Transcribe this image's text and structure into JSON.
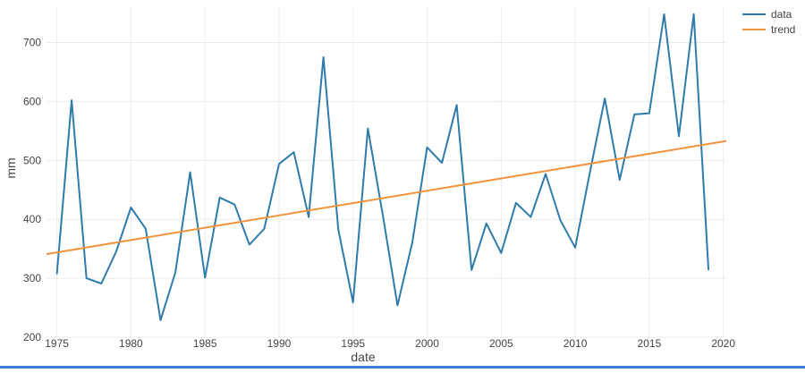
{
  "chart_data": {
    "type": "line",
    "title": "",
    "xlabel": "date",
    "ylabel": "mm",
    "xlim": [
      1974.3,
      2020.2
    ],
    "ylim": [
      200,
      760
    ],
    "x_ticks": [
      1975,
      1980,
      1985,
      1990,
      1995,
      2000,
      2005,
      2010,
      2015,
      2020
    ],
    "y_ticks": [
      200,
      300,
      400,
      500,
      600,
      700
    ],
    "grid": true,
    "legend_position": "top-right",
    "series": [
      {
        "name": "data",
        "color": "#2f7bab",
        "x": [
          1975,
          1976,
          1977,
          1978,
          1979,
          1980,
          1981,
          1982,
          1983,
          1984,
          1985,
          1986,
          1987,
          1988,
          1989,
          1990,
          1991,
          1992,
          1993,
          1994,
          1995,
          1996,
          1997,
          1998,
          1999,
          2000,
          2001,
          2002,
          2003,
          2004,
          2005,
          2006,
          2007,
          2008,
          2009,
          2010,
          2011,
          2012,
          2013,
          2014,
          2015,
          2016,
          2017,
          2018,
          2019
        ],
        "y": [
          307,
          602,
          300,
          291,
          345,
          420,
          384,
          229,
          310,
          480,
          301,
          437,
          425,
          357,
          384,
          494,
          514,
          404,
          675,
          383,
          259,
          554,
          408,
          254,
          361,
          522,
          496,
          594,
          314,
          393,
          343,
          428,
          404,
          477,
          398,
          352,
          481,
          605,
          467,
          578,
          580,
          748,
          541,
          748,
          314
        ]
      },
      {
        "name": "trend",
        "color": "#f0933b",
        "x": [
          1974.3,
          2020.2
        ],
        "y": [
          341,
          533
        ]
      }
    ]
  }
}
